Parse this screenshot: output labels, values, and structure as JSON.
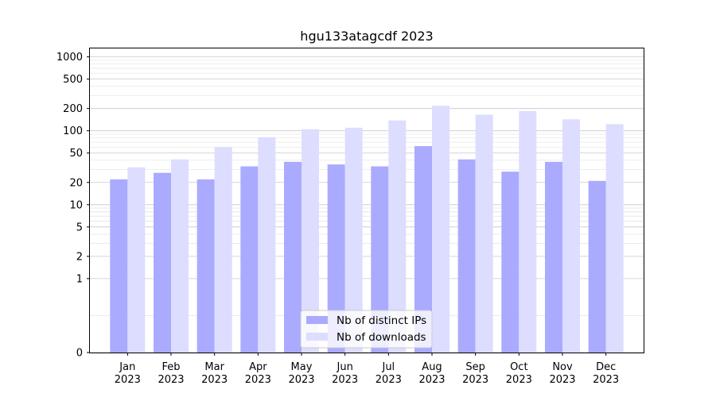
{
  "chart_data": {
    "type": "bar",
    "title": "hgu133atagcdf 2023",
    "xlabel": "",
    "ylabel": "",
    "y_scale": "symlog",
    "ylim": [
      0,
      1300
    ],
    "y_ticks": [
      0,
      1,
      2,
      5,
      10,
      20,
      50,
      100,
      200,
      500,
      1000
    ],
    "grid": true,
    "legend_position": "lower-center",
    "categories": [
      [
        "Jan",
        "2023"
      ],
      [
        "Feb",
        "2023"
      ],
      [
        "Mar",
        "2023"
      ],
      [
        "Apr",
        "2023"
      ],
      [
        "May",
        "2023"
      ],
      [
        "Jun",
        "2023"
      ],
      [
        "Jul",
        "2023"
      ],
      [
        "Aug",
        "2023"
      ],
      [
        "Sep",
        "2023"
      ],
      [
        "Oct",
        "2023"
      ],
      [
        "Nov",
        "2023"
      ],
      [
        "Dec",
        "2023"
      ]
    ],
    "series": [
      {
        "name": "Nb of distinct IPs",
        "color": "#aaaaff",
        "values": [
          22,
          27,
          22,
          33,
          38,
          35,
          33,
          62,
          41,
          28,
          38,
          21
        ]
      },
      {
        "name": "Nb of downloads",
        "color": "#ddddff",
        "values": [
          32,
          41,
          60,
          82,
          105,
          110,
          138,
          218,
          165,
          185,
          143,
          123
        ]
      }
    ]
  }
}
